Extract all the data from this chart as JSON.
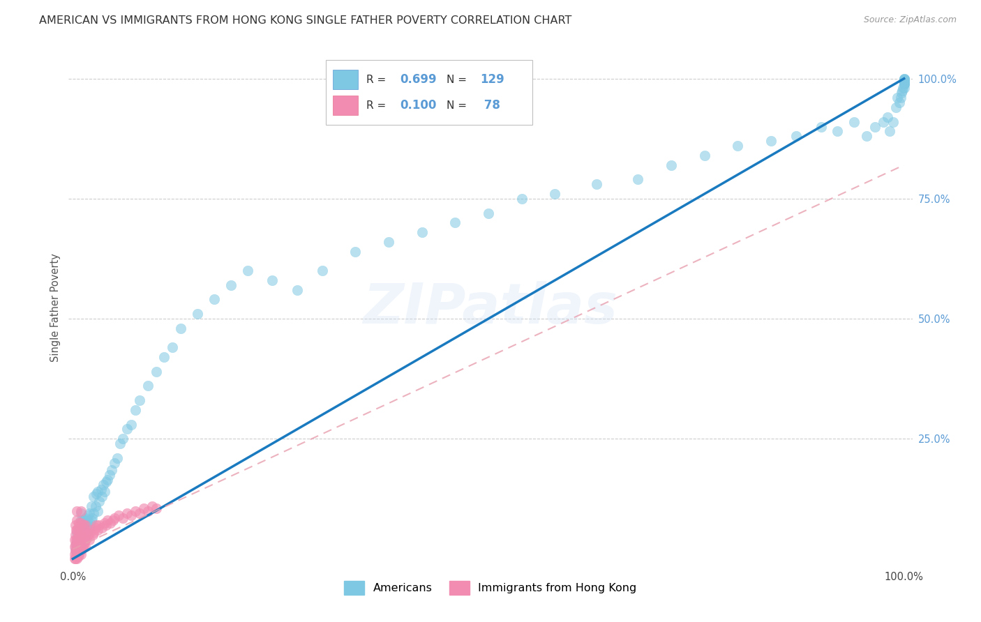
{
  "title": "AMERICAN VS IMMIGRANTS FROM HONG KONG SINGLE FATHER POVERTY CORRELATION CHART",
  "source": "Source: ZipAtlas.com",
  "ylabel": "Single Father Poverty",
  "legend1_label": "Americans",
  "legend2_label": "Immigrants from Hong Kong",
  "r_americans": 0.699,
  "n_americans": 129,
  "r_hk": 0.1,
  "n_hk": 78,
  "watermark": "ZIPatlas",
  "blue_color": "#7ec8e3",
  "pink_color": "#f28cb1",
  "blue_line_color": "#1a7abf",
  "pink_line_color": "#e8a0b0",
  "title_fontsize": 11.5,
  "axis_label_fontsize": 10,
  "right_tick_color": "#5b9bd5",
  "blue_scatter_x": [
    0.003,
    0.004,
    0.005,
    0.005,
    0.005,
    0.005,
    0.006,
    0.006,
    0.007,
    0.007,
    0.007,
    0.008,
    0.008,
    0.008,
    0.009,
    0.009,
    0.009,
    0.009,
    0.01,
    0.01,
    0.01,
    0.01,
    0.01,
    0.01,
    0.01,
    0.011,
    0.011,
    0.011,
    0.012,
    0.012,
    0.012,
    0.013,
    0.013,
    0.014,
    0.014,
    0.015,
    0.015,
    0.015,
    0.016,
    0.017,
    0.017,
    0.018,
    0.018,
    0.019,
    0.02,
    0.02,
    0.021,
    0.022,
    0.022,
    0.023,
    0.025,
    0.025,
    0.027,
    0.028,
    0.03,
    0.03,
    0.032,
    0.034,
    0.035,
    0.037,
    0.038,
    0.04,
    0.042,
    0.044,
    0.047,
    0.05,
    0.053,
    0.057,
    0.06,
    0.065,
    0.07,
    0.075,
    0.08,
    0.09,
    0.1,
    0.11,
    0.12,
    0.13,
    0.15,
    0.17,
    0.19,
    0.21,
    0.24,
    0.27,
    0.3,
    0.34,
    0.38,
    0.42,
    0.46,
    0.5,
    0.54,
    0.58,
    0.63,
    0.68,
    0.72,
    0.76,
    0.8,
    0.84,
    0.87,
    0.9,
    0.92,
    0.94,
    0.955,
    0.965,
    0.975,
    0.98,
    0.983,
    0.987,
    0.99,
    0.992,
    0.994,
    0.996,
    0.997,
    0.998,
    0.999,
    1.0,
    1.0,
    1.0,
    1.0,
    1.0,
    1.0,
    1.0,
    1.0,
    1.0,
    1.0,
    1.0,
    1.0,
    1.0,
    1.0
  ],
  "blue_scatter_y": [
    0.02,
    0.03,
    0.015,
    0.025,
    0.035,
    0.055,
    0.02,
    0.04,
    0.025,
    0.035,
    0.055,
    0.02,
    0.04,
    0.06,
    0.025,
    0.035,
    0.045,
    0.065,
    0.02,
    0.03,
    0.04,
    0.05,
    0.065,
    0.08,
    0.095,
    0.03,
    0.05,
    0.07,
    0.035,
    0.055,
    0.08,
    0.04,
    0.065,
    0.045,
    0.075,
    0.04,
    0.06,
    0.085,
    0.065,
    0.055,
    0.08,
    0.06,
    0.09,
    0.07,
    0.065,
    0.095,
    0.075,
    0.08,
    0.11,
    0.085,
    0.095,
    0.13,
    0.11,
    0.135,
    0.1,
    0.14,
    0.12,
    0.145,
    0.13,
    0.155,
    0.14,
    0.16,
    0.165,
    0.175,
    0.185,
    0.2,
    0.21,
    0.24,
    0.25,
    0.27,
    0.28,
    0.31,
    0.33,
    0.36,
    0.39,
    0.42,
    0.44,
    0.48,
    0.51,
    0.54,
    0.57,
    0.6,
    0.58,
    0.56,
    0.6,
    0.64,
    0.66,
    0.68,
    0.7,
    0.72,
    0.75,
    0.76,
    0.78,
    0.79,
    0.82,
    0.84,
    0.86,
    0.87,
    0.88,
    0.9,
    0.89,
    0.91,
    0.88,
    0.9,
    0.91,
    0.92,
    0.89,
    0.91,
    0.94,
    0.96,
    0.95,
    0.96,
    0.97,
    0.975,
    0.98,
    0.99,
    0.98,
    0.99,
    0.995,
    0.99,
    0.995,
    0.998,
    0.99,
    0.995,
    0.998,
    1.0,
    0.995,
    0.998,
    1.0
  ],
  "pink_scatter_x": [
    0.002,
    0.002,
    0.002,
    0.002,
    0.003,
    0.003,
    0.003,
    0.003,
    0.003,
    0.004,
    0.004,
    0.004,
    0.004,
    0.005,
    0.005,
    0.005,
    0.005,
    0.005,
    0.005,
    0.005,
    0.006,
    0.006,
    0.006,
    0.006,
    0.007,
    0.007,
    0.007,
    0.007,
    0.008,
    0.008,
    0.008,
    0.009,
    0.009,
    0.009,
    0.01,
    0.01,
    0.01,
    0.01,
    0.01,
    0.011,
    0.011,
    0.012,
    0.012,
    0.013,
    0.013,
    0.014,
    0.015,
    0.015,
    0.016,
    0.017,
    0.018,
    0.019,
    0.02,
    0.021,
    0.022,
    0.024,
    0.025,
    0.027,
    0.028,
    0.03,
    0.032,
    0.035,
    0.038,
    0.04,
    0.042,
    0.045,
    0.048,
    0.05,
    0.055,
    0.06,
    0.065,
    0.07,
    0.075,
    0.08,
    0.085,
    0.09,
    0.095,
    0.1
  ],
  "pink_scatter_y": [
    0.0,
    0.01,
    0.025,
    0.04,
    0.0,
    0.015,
    0.03,
    0.05,
    0.07,
    0.005,
    0.02,
    0.04,
    0.06,
    0.0,
    0.01,
    0.025,
    0.04,
    0.06,
    0.08,
    0.1,
    0.005,
    0.025,
    0.045,
    0.065,
    0.01,
    0.03,
    0.05,
    0.075,
    0.015,
    0.035,
    0.06,
    0.02,
    0.045,
    0.07,
    0.01,
    0.03,
    0.05,
    0.075,
    0.1,
    0.02,
    0.055,
    0.025,
    0.065,
    0.03,
    0.07,
    0.035,
    0.025,
    0.07,
    0.04,
    0.045,
    0.05,
    0.055,
    0.04,
    0.055,
    0.06,
    0.05,
    0.055,
    0.065,
    0.07,
    0.06,
    0.07,
    0.065,
    0.075,
    0.07,
    0.08,
    0.075,
    0.08,
    0.085,
    0.09,
    0.085,
    0.095,
    0.09,
    0.1,
    0.095,
    0.105,
    0.1,
    0.11,
    0.105
  ]
}
